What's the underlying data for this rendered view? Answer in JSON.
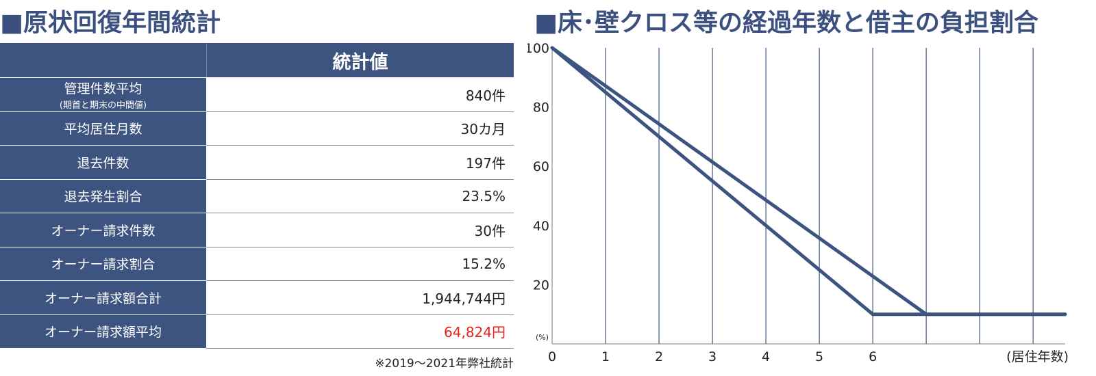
{
  "left": {
    "title": "■原状回復年間統計",
    "table": {
      "header_value": "統計値",
      "rows": [
        {
          "label": "管理件数平均",
          "sublabel": "(期首と期末の中間値)",
          "value": "840件",
          "highlight": false
        },
        {
          "label": "平均居住月数",
          "sublabel": "",
          "value": "30カ月",
          "highlight": false
        },
        {
          "label": "退去件数",
          "sublabel": "",
          "value": "197件",
          "highlight": false
        },
        {
          "label": "退去発生割合",
          "sublabel": "",
          "value": "23.5%",
          "highlight": false
        },
        {
          "label": "オーナー請求件数",
          "sublabel": "",
          "value": "30件",
          "highlight": false
        },
        {
          "label": "オーナー請求割合",
          "sublabel": "",
          "value": "15.2%",
          "highlight": false
        },
        {
          "label": "オーナー請求額合計",
          "sublabel": "",
          "value": "1,944,744円",
          "highlight": false
        },
        {
          "label": "オーナー請求額平均",
          "sublabel": "",
          "value": "64,824円",
          "highlight": true
        }
      ]
    },
    "note": "※2019〜2021年弊社統計"
  },
  "right": {
    "title": "■床･壁クロス等の経過年数と借主の負担割合"
  },
  "colors": {
    "navy": "#3d5480",
    "highlight_red": "#e8201a"
  },
  "chart_data": {
    "type": "line",
    "x_tick_labels": [
      "0",
      "1",
      "2",
      "3",
      "4",
      "5",
      "6"
    ],
    "y_tick_labels": [
      "100",
      "80",
      "60",
      "40",
      "20"
    ],
    "y_unit_label": "(%)",
    "x_unit_label": "(居住年数)",
    "xlim": [
      0,
      9.6
    ],
    "ylim": [
      0,
      100
    ],
    "x_gridlines": [
      1,
      2,
      3,
      4,
      5,
      6,
      7,
      8,
      9
    ],
    "series": [
      {
        "x": [
          0,
          6,
          9.6
        ],
        "y": [
          100,
          10,
          10
        ]
      },
      {
        "x": [
          0,
          7,
          9.6
        ],
        "y": [
          100,
          10,
          10
        ]
      }
    ]
  }
}
